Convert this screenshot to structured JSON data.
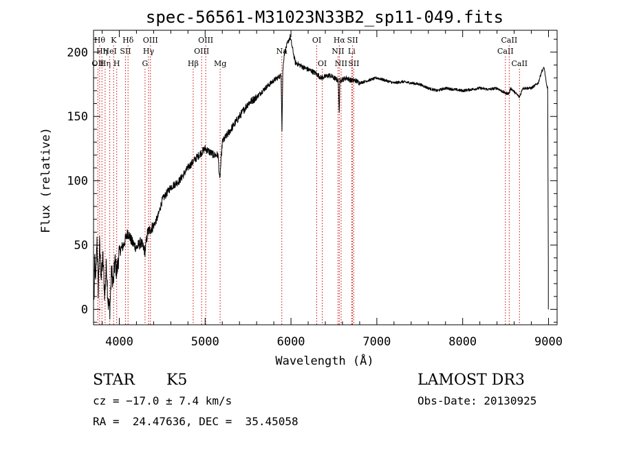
{
  "chart_data": {
    "type": "line",
    "title": "spec-56561-M31023N33B2_sp11-049.fits",
    "xlabel": "Wavelength (Å)",
    "ylabel": "Flux (relative)",
    "xlim": [
      3700,
      9100
    ],
    "ylim": [
      -12,
      217
    ],
    "xticks": [
      4000,
      5000,
      6000,
      7000,
      8000,
      9000
    ],
    "yticks": [
      0,
      50,
      100,
      150,
      200
    ],
    "grid": false,
    "line_color": "#000000",
    "marker_color": "#cc0000",
    "spectrum_anchors": [
      [
        3705,
        5
      ],
      [
        3715,
        40
      ],
      [
        3725,
        20
      ],
      [
        3740,
        55
      ],
      [
        3755,
        15
      ],
      [
        3770,
        50
      ],
      [
        3790,
        25
      ],
      [
        3810,
        40
      ],
      [
        3830,
        10
      ],
      [
        3850,
        35
      ],
      [
        3870,
        5
      ],
      [
        3890,
        0
      ],
      [
        3910,
        30
      ],
      [
        3930,
        20
      ],
      [
        3950,
        38
      ],
      [
        3970,
        28
      ],
      [
        4000,
        45
      ],
      [
        4050,
        50
      ],
      [
        4100,
        60
      ],
      [
        4150,
        52
      ],
      [
        4200,
        48
      ],
      [
        4250,
        52
      ],
      [
        4300,
        45
      ],
      [
        4330,
        60
      ],
      [
        4400,
        65
      ],
      [
        4450,
        72
      ],
      [
        4500,
        85
      ],
      [
        4600,
        95
      ],
      [
        4700,
        100
      ],
      [
        4800,
        110
      ],
      [
        4900,
        118
      ],
      [
        5000,
        125
      ],
      [
        5100,
        120
      ],
      [
        5150,
        120
      ],
      [
        5170,
        100
      ],
      [
        5180,
        110
      ],
      [
        5200,
        130
      ],
      [
        5300,
        140
      ],
      [
        5400,
        150
      ],
      [
        5500,
        160
      ],
      [
        5600,
        165
      ],
      [
        5700,
        172
      ],
      [
        5800,
        178
      ],
      [
        5885,
        182
      ],
      [
        5895,
        140
      ],
      [
        5905,
        185
      ],
      [
        5920,
        198
      ],
      [
        5950,
        205
      ],
      [
        5990,
        212
      ],
      [
        6050,
        192
      ],
      [
        6150,
        188
      ],
      [
        6250,
        185
      ],
      [
        6300,
        183
      ],
      [
        6350,
        180
      ],
      [
        6450,
        182
      ],
      [
        6500,
        180
      ],
      [
        6550,
        178
      ],
      [
        6563,
        152
      ],
      [
        6570,
        178
      ],
      [
        6650,
        180
      ],
      [
        6700,
        178
      ],
      [
        6750,
        178
      ],
      [
        6800,
        176
      ],
      [
        6900,
        178
      ],
      [
        7000,
        180
      ],
      [
        7100,
        178
      ],
      [
        7200,
        176
      ],
      [
        7300,
        177
      ],
      [
        7400,
        176
      ],
      [
        7500,
        175
      ],
      [
        7600,
        172
      ],
      [
        7700,
        170
      ],
      [
        7800,
        172
      ],
      [
        7900,
        171
      ],
      [
        8000,
        170
      ],
      [
        8100,
        171
      ],
      [
        8200,
        172
      ],
      [
        8300,
        171
      ],
      [
        8400,
        172
      ],
      [
        8498,
        168
      ],
      [
        8542,
        168
      ],
      [
        8560,
        172
      ],
      [
        8662,
        165
      ],
      [
        8700,
        172
      ],
      [
        8800,
        172
      ],
      [
        8880,
        176
      ],
      [
        8920,
        185
      ],
      [
        8950,
        188
      ],
      [
        8975,
        175
      ],
      [
        8990,
        172
      ]
    ],
    "line_markers": [
      {
        "wavelength": 3750,
        "label": "OII",
        "row": 3
      },
      {
        "wavelength": 3771,
        "label": "Hθ",
        "row": 1
      },
      {
        "wavelength": 3798,
        "label": "Hη",
        "row": 2
      },
      {
        "wavelength": 3835,
        "label": "Hη",
        "row": 3
      },
      {
        "wavelength": 3889,
        "label": "HeI",
        "row": 2
      },
      {
        "wavelength": 3934,
        "label": "K",
        "row": 1
      },
      {
        "wavelength": 3970,
        "label": "H",
        "row": 3
      },
      {
        "wavelength": 4072,
        "label": "SII",
        "row": 2
      },
      {
        "wavelength": 4102,
        "label": "Hδ",
        "row": 1
      },
      {
        "wavelength": 4300,
        "label": "G",
        "row": 3
      },
      {
        "wavelength": 4341,
        "label": "Hγ",
        "row": 2
      },
      {
        "wavelength": 4363,
        "label": "OIII",
        "row": 1
      },
      {
        "wavelength": 4861,
        "label": "Hβ",
        "row": 3
      },
      {
        "wavelength": 4959,
        "label": "OIII",
        "row": 2
      },
      {
        "wavelength": 5007,
        "label": "OIII",
        "row": 1
      },
      {
        "wavelength": 5175,
        "label": "Mg",
        "row": 3
      },
      {
        "wavelength": 5893,
        "label": "Na",
        "row": 2
      },
      {
        "wavelength": 6300,
        "label": "OI",
        "row": 1
      },
      {
        "wavelength": 6364,
        "label": "OI",
        "row": 3
      },
      {
        "wavelength": 6548,
        "label": "NII",
        "row": 2
      },
      {
        "wavelength": 6563,
        "label": "Hα",
        "row": 1
      },
      {
        "wavelength": 6584,
        "label": "NII",
        "row": 3
      },
      {
        "wavelength": 6707,
        "label": "Li",
        "row": 2
      },
      {
        "wavelength": 6717,
        "label": "SII",
        "row": 1
      },
      {
        "wavelength": 6731,
        "label": "SII",
        "row": 3
      },
      {
        "wavelength": 8498,
        "label": "CaII",
        "row": 2
      },
      {
        "wavelength": 8542,
        "label": "CaII",
        "row": 1
      },
      {
        "wavelength": 8662,
        "label": "CaII",
        "row": 3
      }
    ]
  },
  "info": {
    "object_class": "STAR",
    "subclass": "K5",
    "survey": "LAMOST DR3",
    "redshift": "cz = −17.0 ± 7.4 km/s",
    "obs_date": "Obs-Date: 20130925",
    "coords": "RA =  24.47636, DEC =  35.45058"
  }
}
